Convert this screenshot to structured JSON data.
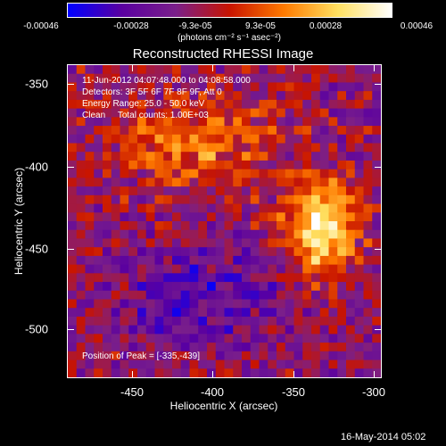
{
  "colorbar": {
    "labels": [
      "-0.00046",
      "-0.00028",
      "-9.3e-05",
      "9.3e-05",
      "0.00028",
      "0.00046"
    ],
    "units": "(photons cm⁻² s⁻¹ asec⁻²)"
  },
  "title": "Reconstructed RHESSI Image",
  "info": {
    "time_range": "11-Jun-2012 04:07:48.000 to 04:08:58.000",
    "detectors": "Detectors: 3F 5F 6F 7F 8F 9F, Att 0",
    "energy": "Energy Range: 25.0 - 50.0 keV",
    "algorithm": "Clean     Total counts: 1.00E+03",
    "peak": "Position of Peak = [-335,-439]"
  },
  "axes": {
    "xlabel": "Heliocentric X (arcsec)",
    "ylabel": "Heliocentric Y (arcsec)",
    "xticks": [
      "-450",
      "-400",
      "-350",
      "-300"
    ],
    "yticks": [
      "-350",
      "-400",
      "-450",
      "-500"
    ]
  },
  "timestamp": "16-May-2014 05:02",
  "chart_data": {
    "type": "heatmap",
    "title": "Reconstructed RHESSI Image",
    "xlabel": "Heliocentric X (arcsec)",
    "ylabel": "Heliocentric Y (arcsec)",
    "xlim": [
      -490,
      -296
    ],
    "ylim": [
      -530,
      -336
    ],
    "value_range": [
      -0.00046,
      0.00046
    ],
    "colormap_stops": [
      "#0000ff",
      "#5a00a0",
      "#7a1f8a",
      "#c81400",
      "#ff7a00",
      "#ffe060",
      "#ffffff"
    ],
    "peak_position": [
      -335,
      -439
    ],
    "grid_size": [
      36,
      36
    ]
  }
}
